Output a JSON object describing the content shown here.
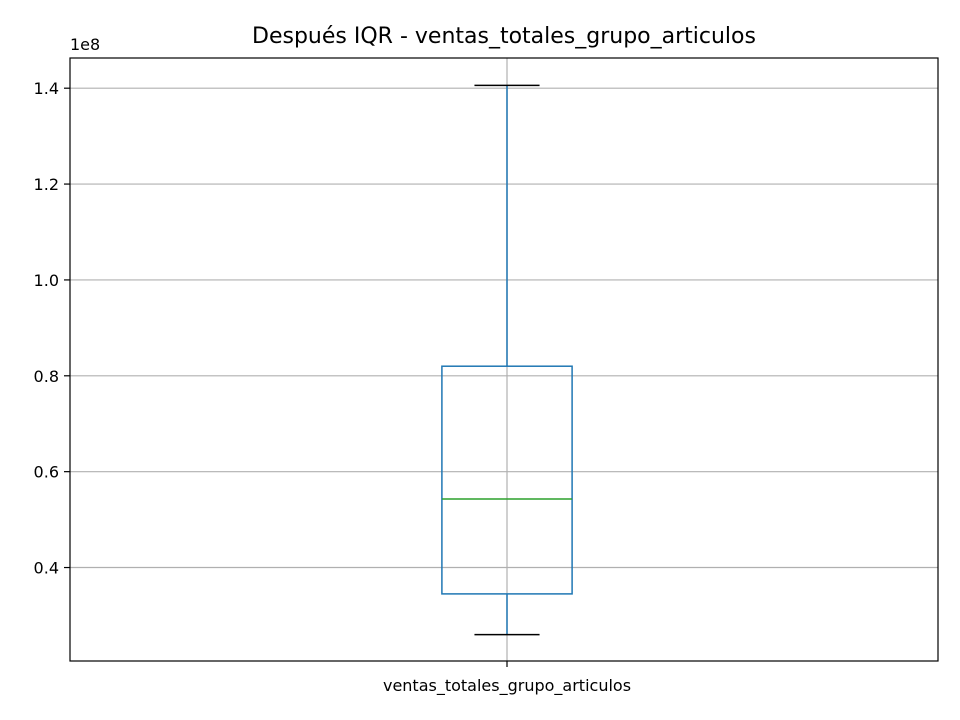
{
  "chart_data": {
    "type": "box",
    "title": "Después IQR - ventas_totales_grupo_articulos",
    "xlabel": "",
    "ylabel": "",
    "categories": [
      "ventas_totales_grupo_articulos"
    ],
    "y_offset_label": "1e8",
    "y_scale": 100000000,
    "ylim": [
      0.205,
      1.463
    ],
    "y_ticks": [
      0.4,
      0.6,
      0.8,
      1.0,
      1.2,
      1.4
    ],
    "y_tick_labels": [
      "0.4",
      "0.6",
      "0.8",
      "1.0",
      "1.2",
      "1.4"
    ],
    "grid": true,
    "boxes": [
      {
        "category": "ventas_totales_grupo_articulos",
        "whisker_low": 0.26,
        "q1": 0.345,
        "median": 0.543,
        "q3": 0.82,
        "whisker_high": 1.406
      }
    ],
    "colors": {
      "box": "#1f77b4",
      "median": "#2ca02c",
      "caps": "#000000",
      "grid": "#b0b0b0",
      "axes": "#000000"
    }
  }
}
